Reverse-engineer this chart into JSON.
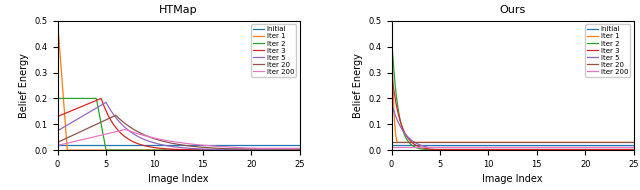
{
  "title_left": "HTMap",
  "title_right": "Ours",
  "xlabel": "Image Index",
  "ylabel": "Belief Energy",
  "xlim": [
    0,
    25
  ],
  "ylim": [
    0,
    0.5
  ],
  "xticks": [
    0,
    5,
    10,
    15,
    20,
    25
  ],
  "yticks": [
    0.0,
    0.1,
    0.2,
    0.3,
    0.4,
    0.5
  ],
  "legend_labels": [
    "Initial",
    "Iter 1",
    "Iter 2",
    "Iter 3",
    "Iter 5",
    "Iter 20",
    "Iter 200"
  ],
  "colors": [
    "#1f77b4",
    "#ff7f0e",
    "#2ca02c",
    "#d62728",
    "#9467bd",
    "#8c564b",
    "#e377c2"
  ]
}
